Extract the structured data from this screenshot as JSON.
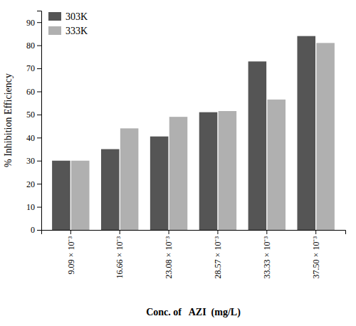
{
  "chart_data": {
    "type": "bar",
    "categories": [
      "9.09 × 10⁻³",
      "16.66 × 10⁻³",
      "23.08 × 10⁻³",
      "28.57 × 10⁻³",
      "33.33 × 10⁻³",
      "37.50 × 10⁻³"
    ],
    "series": [
      {
        "name": "303K",
        "color": "#555555",
        "values": [
          30,
          35,
          40.5,
          51,
          73,
          84
        ]
      },
      {
        "name": "333K",
        "color": "#b0b0b0",
        "values": [
          30,
          44,
          49,
          51.5,
          56.5,
          81
        ]
      }
    ],
    "xlabel": "Conc. of   AZI  (mg/L)",
    "ylabel": "% Inhibition Efficiency",
    "ylim": [
      0,
      95
    ],
    "yticks": [
      0,
      10,
      20,
      30,
      40,
      50,
      60,
      70,
      80,
      90
    ],
    "grid": false,
    "legend": "upper left"
  }
}
